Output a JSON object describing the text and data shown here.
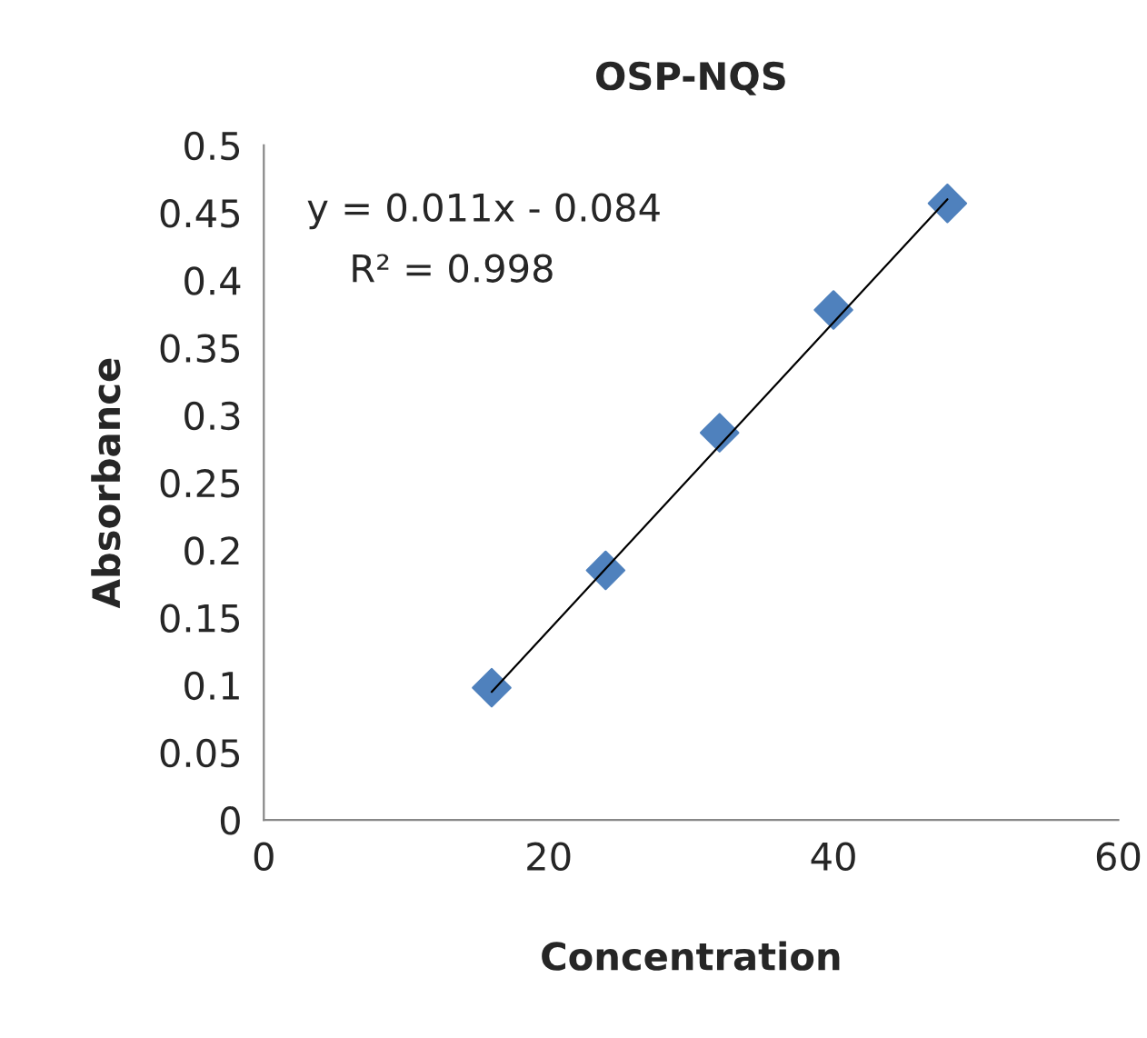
{
  "chart_data": {
    "type": "scatter",
    "title": "OSP-NQS",
    "xlabel": "Concentration",
    "ylabel": "Absorbance",
    "series": [
      {
        "color": "#4f81bd",
        "marker": "diamond",
        "x": [
          16,
          24,
          32,
          40,
          48
        ],
        "values": [
          0.098,
          0.185,
          0.287,
          0.378,
          0.457
        ]
      },
      {
        "type": "line",
        "color": "#000000",
        "marker": "none",
        "x": [
          16,
          48
        ],
        "values": [
          0.095,
          0.46
        ]
      }
    ],
    "annotations": [
      "y = 0.011x - 0.084",
      "R² = 0.998"
    ],
    "xlim": [
      0,
      60
    ],
    "xticks": [
      0,
      20,
      40,
      60
    ],
    "ylim": [
      0,
      0.5
    ],
    "yticks": [
      0,
      0.05,
      0.1,
      0.15,
      0.2,
      0.25,
      0.3,
      0.35,
      0.4,
      0.45,
      0.5
    ],
    "grid": false,
    "legend": false
  }
}
